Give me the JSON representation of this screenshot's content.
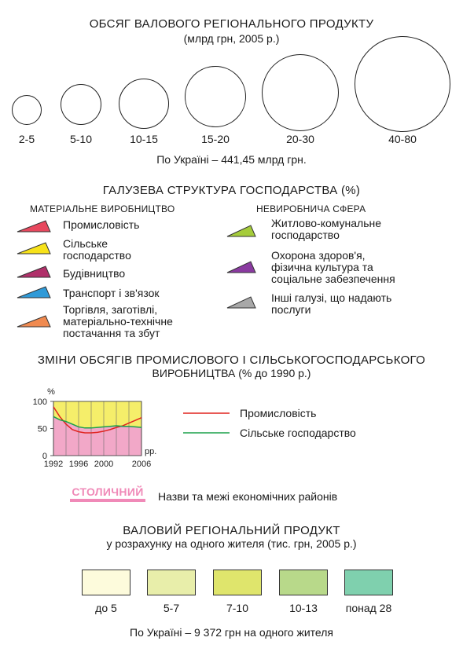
{
  "grp": {
    "title": "ОБСЯГ ВАЛОВОГО РЕГІОНАЛЬНОГО ПРОДУКТУ",
    "subtitle": "(млрд грн, 2005 р.)",
    "classes": [
      "2-5",
      "5-10",
      "10-15",
      "15-20",
      "20-30",
      "40-80"
    ],
    "total": "По Україні – 441,45 млрд грн."
  },
  "structure": {
    "title": "ГАЛУЗЕВА СТРУКТУРА ГОСПОДАРСТВА (%)",
    "material_heading": "МАТЕРІАЛЬНЕ ВИРОБНИЦТВО",
    "nonproductive_heading": "НЕВИРОБНИЧА СФЕРА",
    "material_items": [
      {
        "label": "Промисловість",
        "color": "#e8485e"
      },
      {
        "label": "Сільське\nгосподарство",
        "color": "#f7e21a"
      },
      {
        "label": "Будівництво",
        "color": "#b0306a"
      },
      {
        "label": "Транспорт і зв'язок",
        "color": "#2f9ad8"
      },
      {
        "label": "Торгівля, заготівлі,\nматеріально-технічне\nпостачання та збут",
        "color": "#f08a50"
      }
    ],
    "nonproductive_items": [
      {
        "label": "Житлово-комунальне\nгосподарство",
        "color": "#a5cc3a"
      },
      {
        "label": "Охорона здоров'я,\nфізична культура та\nсоціальне забезпечення",
        "color": "#8a3aa0"
      },
      {
        "label": "Інші галузі, що надають\nпослуги",
        "color": "#a8a8a8"
      }
    ]
  },
  "changes": {
    "title_line1": "ЗМІНИ ОБСЯГІВ ПРОМИСЛОВОГО І СІЛЬСЬКОГОСПОДАРСЬКОГО",
    "title_line2": "ВИРОБНИЦТВА (% до 1990 р.)"
  },
  "chart_data": {
    "type": "area",
    "y_unit": "%",
    "x_unit": "рр.",
    "ylim": [
      0,
      100
    ],
    "y_ticks": [
      "0",
      "50",
      "100"
    ],
    "x_ticks": [
      "1992",
      "1996",
      "2000",
      "2006"
    ],
    "x": [
      1992,
      1993,
      1994,
      1995,
      1996,
      1997,
      1998,
      1999,
      2000,
      2001,
      2002,
      2003,
      2004,
      2005,
      2006
    ],
    "series": [
      {
        "name": "Промисловість",
        "color": "#e0231f",
        "values": [
          90,
          72,
          58,
          48,
          44,
          42,
          42,
          43,
          45,
          48,
          52,
          55,
          60,
          65,
          70
        ]
      },
      {
        "name": "Сільське господарство",
        "color": "#1aa04a",
        "values": [
          72,
          66,
          63,
          58,
          53,
          51,
          51,
          52,
          53,
          54,
          55,
          54,
          54,
          53,
          52
        ]
      }
    ],
    "fill_below_agriculture": "#f2a8c8",
    "fill_between": "#f5ee6a"
  },
  "regions": {
    "sample_name": "СТОЛИЧНИЙ",
    "description": "Назви та межі економічних районів",
    "sample_color": "#f08ab8"
  },
  "per_capita": {
    "title": "ВАЛОВИЙ РЕГІОНАЛЬНИЙ ПРОДУКТ",
    "subtitle": "у розрахунку на одного жителя (тис. грн, 2005 р.)",
    "classes": [
      {
        "label": "до 5",
        "color": "#fdfbdc"
      },
      {
        "label": "5-7",
        "color": "#e8eeaa"
      },
      {
        "label": "7-10",
        "color": "#dfe56c"
      },
      {
        "label": "10-13",
        "color": "#b8d98a"
      },
      {
        "label": "понад 28",
        "color": "#7fd0ae"
      }
    ],
    "total": "По Україні – 9 372 грн на одного жителя"
  }
}
